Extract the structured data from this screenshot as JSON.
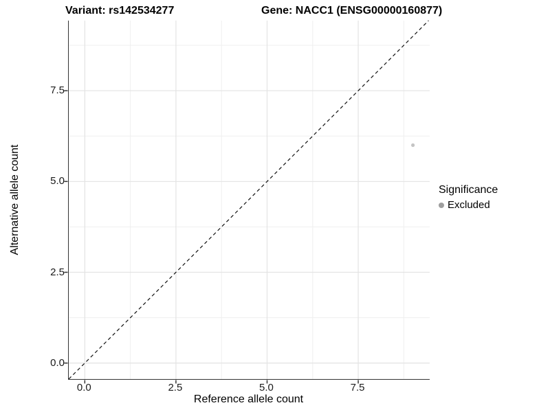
{
  "header": {
    "variant_title": "Variant: rs142534277",
    "gene_title": "Gene: NACC1 (ENSG00000160877)"
  },
  "legend": {
    "title": "Significance",
    "items": [
      {
        "label": "Excluded",
        "color": "#9e9e9e"
      }
    ]
  },
  "chart_data": {
    "type": "scatter",
    "title": "Variant: rs142534277 / Gene: NACC1 (ENSG00000160877)",
    "xlabel": "Reference allele count",
    "ylabel": "Alternative allele count",
    "xlim": [
      -0.44,
      9.46
    ],
    "ylim": [
      -0.44,
      9.43
    ],
    "x_ticks": {
      "values": [
        0,
        2.5,
        5,
        7.5
      ],
      "labels": [
        "0.0",
        "2.5",
        "5.0",
        "7.5"
      ]
    },
    "y_ticks": {
      "values": [
        0,
        2.5,
        5,
        7.5
      ],
      "labels": [
        "0.0",
        "2.5",
        "5.0",
        "7.5"
      ]
    },
    "minor_grid_step": 1.25,
    "grid": true,
    "legend_position": "right",
    "series": [
      {
        "name": "Excluded",
        "color": "#c4c4c4",
        "marker_radius": 2.6,
        "points": [
          {
            "x": 9,
            "y": 6
          }
        ]
      }
    ],
    "reference_line": {
      "equation": "y = x",
      "style": "dashed",
      "color": "#111111"
    },
    "colors": {
      "major_grid": "#e3e3e3",
      "minor_grid": "#efefef",
      "axis_line": "#333333",
      "tick": "#333333"
    }
  }
}
